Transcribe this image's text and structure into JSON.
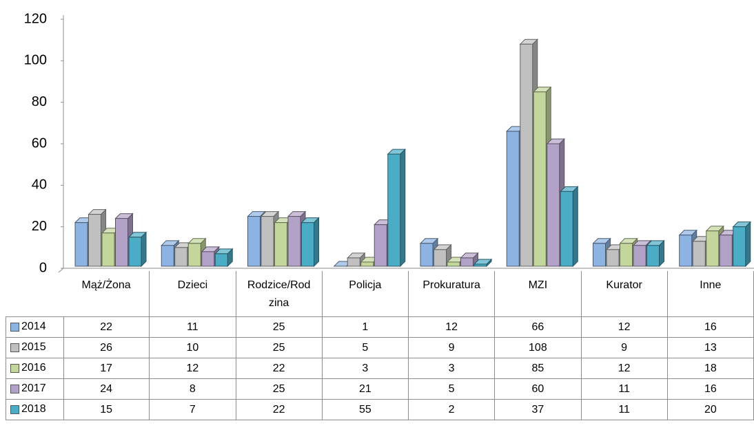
{
  "chart_data": {
    "type": "bar3d",
    "categories": [
      "Mąż/Żona",
      "Dzieci",
      "Rodzice/Rodzina",
      "Policja",
      "Prokuratura",
      "MZI",
      "Kurator",
      "Inne"
    ],
    "series": [
      {
        "name": "2014",
        "color": "#8db3e2",
        "values": [
          22,
          11,
          25,
          1,
          12,
          66,
          12,
          16
        ]
      },
      {
        "name": "2015",
        "color": "#c0c0c0",
        "values": [
          26,
          10,
          25,
          5,
          9,
          108,
          9,
          13
        ]
      },
      {
        "name": "2016",
        "color": "#c3d69b",
        "values": [
          17,
          12,
          22,
          3,
          3,
          85,
          12,
          18
        ]
      },
      {
        "name": "2017",
        "color": "#b3a2c7",
        "values": [
          24,
          8,
          25,
          21,
          5,
          60,
          11,
          16
        ]
      },
      {
        "name": "2018",
        "color": "#4bacc6",
        "values": [
          15,
          7,
          22,
          55,
          2,
          37,
          11,
          20
        ]
      }
    ],
    "ylim": [
      0,
      120
    ],
    "yticks": [
      0,
      20,
      40,
      60,
      80,
      100,
      120
    ],
    "grid": false,
    "legend": "table"
  }
}
